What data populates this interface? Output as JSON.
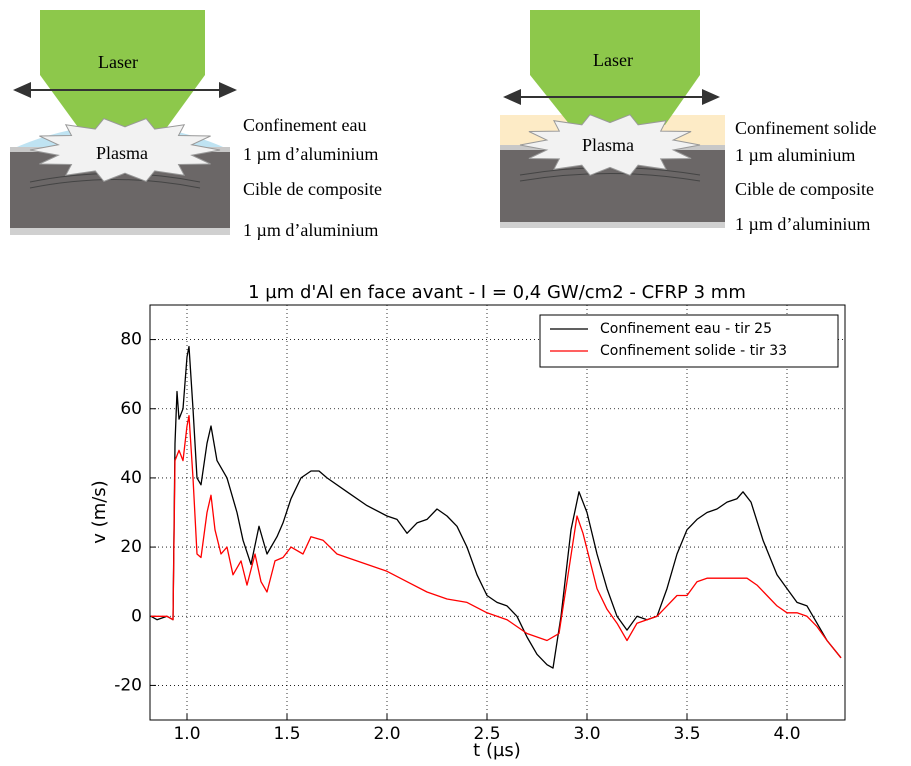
{
  "diagrams": [
    {
      "laser": "Laser",
      "plasma": "Plasma",
      "layers": [
        "Confinement eau",
        "1 µm d’aluminium",
        "Cible de composite",
        "1 µm d’aluminium"
      ]
    },
    {
      "laser": "Laser",
      "plasma": "Plasma",
      "layers": [
        "Confinement solide",
        "1 µm aluminium",
        "Cible de composite",
        "1 µm d’aluminium"
      ]
    }
  ],
  "chart_data": {
    "type": "line",
    "title": "1 µm d'Al en face avant - I = 0,4 GW/cm2 - CFRP 3 mm",
    "x_label": "t (µs)",
    "y_label": "v (m/s)",
    "xlim": [
      0.815,
      4.29
    ],
    "ylim": [
      -30,
      90
    ],
    "xticks": [
      {
        "value": 1,
        "label": "1.0"
      },
      1.5,
      {
        "value": 2,
        "label": "2.0"
      },
      2.5,
      {
        "value": 3,
        "label": "3.0"
      },
      3.5,
      {
        "value": 4,
        "label": "4.0"
      }
    ],
    "yticks": [
      -20,
      0,
      20,
      40,
      60,
      80
    ],
    "grid": true,
    "legend": "upper right",
    "series": [
      {
        "name": "Confinement eau - tir 25",
        "color": "#000000",
        "x": [
          0.82,
          0.85,
          0.9,
          0.93,
          0.94,
          0.95,
          0.96,
          0.98,
          1.0,
          1.01,
          1.03,
          1.05,
          1.07,
          1.1,
          1.12,
          1.15,
          1.2,
          1.25,
          1.28,
          1.32,
          1.36,
          1.4,
          1.45,
          1.48,
          1.52,
          1.57,
          1.62,
          1.66,
          1.7,
          1.8,
          1.9,
          2.0,
          2.05,
          2.1,
          2.15,
          2.2,
          2.25,
          2.3,
          2.35,
          2.4,
          2.45,
          2.5,
          2.55,
          2.6,
          2.65,
          2.7,
          2.75,
          2.8,
          2.83,
          2.87,
          2.92,
          2.96,
          3.0,
          3.05,
          3.1,
          3.15,
          3.2,
          3.25,
          3.3,
          3.35,
          3.4,
          3.45,
          3.5,
          3.55,
          3.6,
          3.65,
          3.7,
          3.75,
          3.78,
          3.82,
          3.88,
          3.95,
          4.0,
          4.05,
          4.1,
          4.15,
          4.2,
          4.27
        ],
        "values": [
          0,
          -1,
          0,
          -1,
          50,
          65,
          57,
          60,
          75,
          78,
          60,
          40,
          38,
          50,
          55,
          45,
          40,
          30,
          22,
          15,
          26,
          18,
          23,
          27,
          34,
          40,
          42,
          42,
          40,
          36,
          32,
          29,
          28,
          24,
          27,
          28,
          31,
          29,
          26,
          20,
          12,
          6,
          4,
          3,
          0,
          -6,
          -11,
          -14,
          -15,
          0,
          25,
          36,
          30,
          18,
          8,
          0,
          -4,
          0,
          -1,
          0,
          8,
          18,
          25,
          28,
          30,
          31,
          33,
          34,
          36,
          33,
          22,
          12,
          8,
          4,
          3,
          -2,
          -7,
          -12
        ]
      },
      {
        "name": "Confinement solide - tir 33",
        "color": "#ff0000",
        "x": [
          0.82,
          0.9,
          0.93,
          0.94,
          0.96,
          0.98,
          1.0,
          1.01,
          1.03,
          1.05,
          1.07,
          1.1,
          1.12,
          1.14,
          1.17,
          1.2,
          1.23,
          1.27,
          1.3,
          1.34,
          1.37,
          1.4,
          1.44,
          1.48,
          1.52,
          1.58,
          1.62,
          1.68,
          1.75,
          1.8,
          1.9,
          2.0,
          2.1,
          2.2,
          2.3,
          2.4,
          2.5,
          2.6,
          2.7,
          2.8,
          2.86,
          2.9,
          2.95,
          2.98,
          3.05,
          3.1,
          3.15,
          3.2,
          3.25,
          3.3,
          3.35,
          3.4,
          3.45,
          3.5,
          3.55,
          3.6,
          3.7,
          3.8,
          3.85,
          3.9,
          3.95,
          4.0,
          4.05,
          4.1,
          4.15,
          4.2,
          4.27
        ],
        "values": [
          0,
          0,
          -1,
          45,
          48,
          45,
          55,
          58,
          40,
          18,
          17,
          30,
          35,
          25,
          18,
          20,
          12,
          16,
          9,
          18,
          10,
          7,
          16,
          17,
          20,
          18,
          23,
          22,
          18,
          17,
          15,
          13,
          10,
          7,
          5,
          4,
          1,
          -1,
          -5,
          -7,
          -5,
          10,
          29,
          24,
          8,
          2,
          -2,
          -7,
          -2,
          -1,
          0,
          3,
          6,
          6,
          10,
          11,
          11,
          11,
          9,
          6,
          3,
          1,
          1,
          0,
          -3,
          -7,
          -12
        ]
      }
    ]
  }
}
